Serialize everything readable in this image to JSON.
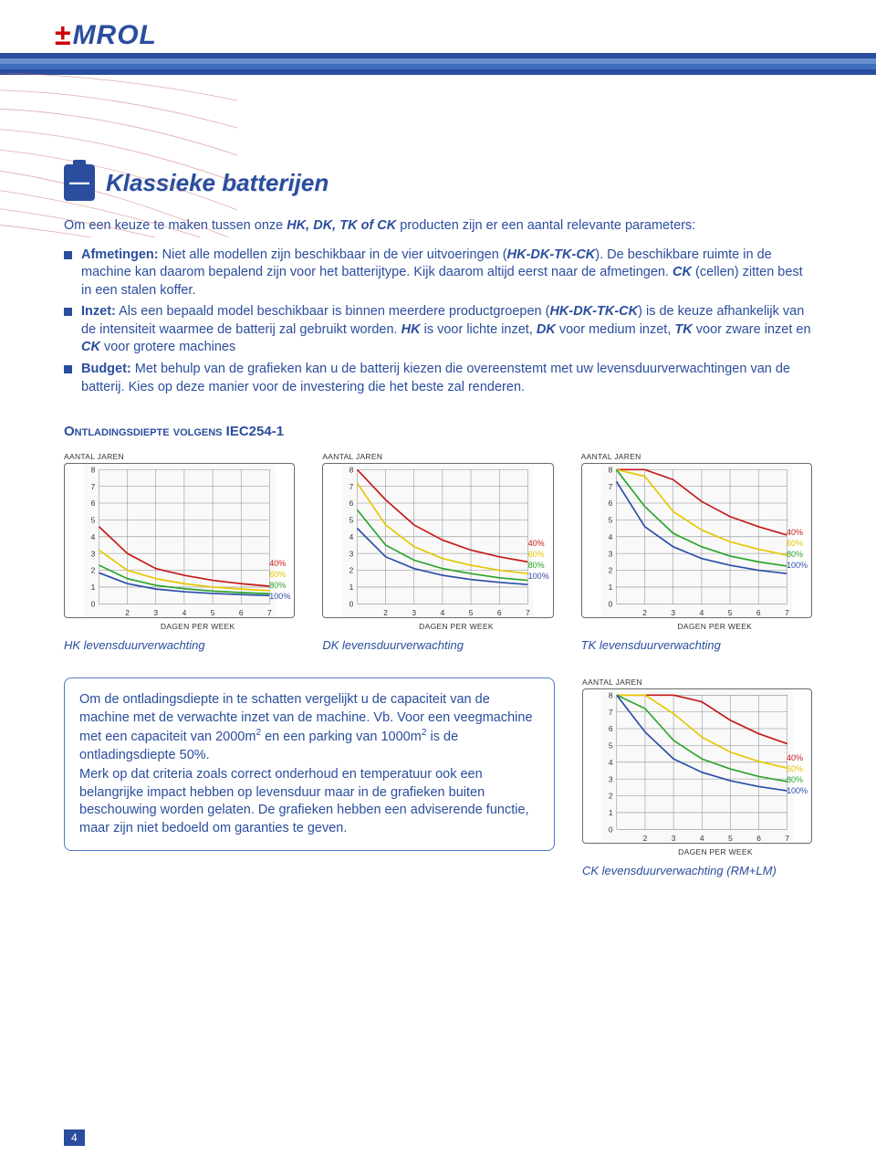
{
  "logo": {
    "mark": "±",
    "text": "MROL"
  },
  "title": "Klassieke batterijen",
  "intro_prefix": "Om een keuze te maken tussen onze ",
  "intro_products": "HK, DK, TK of CK",
  "intro_suffix": " producten zijn er een aantal relevante parameters:",
  "bullets": [
    {
      "head": "Afmetingen:",
      "body": " Niet alle modellen zijn beschikbaar in de vier uitvoeringen (",
      "em": "HK-DK-TK-CK",
      "body2": "). De beschikbare ruimte in de machine kan daarom bepalend zijn voor het  batterijtype. Kijk daarom altijd eerst naar de afmetingen. ",
      "em2": "CK",
      "body3": " (cellen) zitten best in een stalen koffer."
    },
    {
      "head": "Inzet:",
      "body": " Als een bepaald model beschikbaar is binnen meerdere productgroepen (",
      "em": "HK-DK-TK-CK",
      "body2": ") is de keuze afhankelijk van de intensiteit waarmee de batterij zal gebruikt worden. ",
      "em2": "HK",
      "body3": " is voor lichte inzet, ",
      "em3": "DK",
      "body4": " voor medium inzet, ",
      "em4": "TK",
      "body5": " voor zware inzet en ",
      "em5": "CK",
      "body6": " voor grotere machines"
    },
    {
      "head": "Budget:",
      "body": " Met behulp van de grafieken kan u de batterij kiezen die overeenstemt met uw levensduurverwachtingen van de batterij. Kies op deze manier voor de investering die het beste zal renderen."
    }
  ],
  "section_title": "Ontladingsdiepte volgens IEC254-1",
  "axis": {
    "y": "AANTAL JAREN",
    "x": "DAGEN PER WEEK"
  },
  "series_labels": [
    "40%",
    "60%",
    "80%",
    "100%"
  ],
  "series_colors": {
    "40": "#c61a1a",
    "60": "#e6c800",
    "80": "#2aa52a",
    "100": "#2a4da8"
  },
  "grid_color": "#8a8a8a",
  "chart_bg": "#f9f9f9",
  "xlim": [
    1,
    7
  ],
  "ylim": [
    0,
    8
  ],
  "charts": [
    {
      "caption": "HK levensduurverwachting",
      "legend_pos": "right-bottom",
      "curves": {
        "40": [
          [
            1,
            4.6
          ],
          [
            2,
            3.0
          ],
          [
            3,
            2.1
          ],
          [
            4,
            1.7
          ],
          [
            5,
            1.4
          ],
          [
            6,
            1.2
          ],
          [
            7,
            1.05
          ]
        ],
        "60": [
          [
            1,
            3.2
          ],
          [
            2,
            2.0
          ],
          [
            3,
            1.5
          ],
          [
            4,
            1.2
          ],
          [
            5,
            1.0
          ],
          [
            6,
            0.88
          ],
          [
            7,
            0.78
          ]
        ],
        "80": [
          [
            1,
            2.3
          ],
          [
            2,
            1.5
          ],
          [
            3,
            1.1
          ],
          [
            4,
            0.9
          ],
          [
            5,
            0.76
          ],
          [
            6,
            0.67
          ],
          [
            7,
            0.6
          ]
        ],
        "100": [
          [
            1,
            1.85
          ],
          [
            2,
            1.2
          ],
          [
            3,
            0.88
          ],
          [
            4,
            0.72
          ],
          [
            5,
            0.62
          ],
          [
            6,
            0.55
          ],
          [
            7,
            0.49
          ]
        ]
      }
    },
    {
      "caption": "DK levensduurverwachting",
      "legend_pos": "right-mid",
      "curves": {
        "40": [
          [
            1,
            8.0
          ],
          [
            2,
            6.2
          ],
          [
            3,
            4.7
          ],
          [
            4,
            3.8
          ],
          [
            5,
            3.2
          ],
          [
            6,
            2.8
          ],
          [
            7,
            2.5
          ]
        ],
        "60": [
          [
            1,
            7.2
          ],
          [
            2,
            4.7
          ],
          [
            3,
            3.4
          ],
          [
            4,
            2.7
          ],
          [
            5,
            2.3
          ],
          [
            6,
            2.0
          ],
          [
            7,
            1.8
          ]
        ],
        "80": [
          [
            1,
            5.6
          ],
          [
            2,
            3.5
          ],
          [
            3,
            2.6
          ],
          [
            4,
            2.1
          ],
          [
            5,
            1.8
          ],
          [
            6,
            1.55
          ],
          [
            7,
            1.4
          ]
        ],
        "100": [
          [
            1,
            4.5
          ],
          [
            2,
            2.8
          ],
          [
            3,
            2.1
          ],
          [
            4,
            1.7
          ],
          [
            5,
            1.45
          ],
          [
            6,
            1.28
          ],
          [
            7,
            1.15
          ]
        ]
      }
    },
    {
      "caption": "TK levensduurverwachting",
      "legend_pos": "right-high",
      "curves": {
        "40": [
          [
            1,
            8.0
          ],
          [
            2,
            8.0
          ],
          [
            3,
            7.4
          ],
          [
            4,
            6.1
          ],
          [
            5,
            5.2
          ],
          [
            6,
            4.6
          ],
          [
            7,
            4.1
          ]
        ],
        "60": [
          [
            1,
            8.0
          ],
          [
            2,
            7.6
          ],
          [
            3,
            5.5
          ],
          [
            4,
            4.4
          ],
          [
            5,
            3.7
          ],
          [
            6,
            3.25
          ],
          [
            7,
            2.9
          ]
        ],
        "80": [
          [
            1,
            8.0
          ],
          [
            2,
            5.8
          ],
          [
            3,
            4.2
          ],
          [
            4,
            3.4
          ],
          [
            5,
            2.85
          ],
          [
            6,
            2.5
          ],
          [
            7,
            2.25
          ]
        ],
        "100": [
          [
            1,
            7.3
          ],
          [
            2,
            4.6
          ],
          [
            3,
            3.4
          ],
          [
            4,
            2.7
          ],
          [
            5,
            2.3
          ],
          [
            6,
            2.0
          ],
          [
            7,
            1.8
          ]
        ]
      }
    }
  ],
  "ck_chart": {
    "caption": "CK levensduurverwachting (RM+LM)",
    "legend_pos": "right-high",
    "curves": {
      "40": [
        [
          1,
          8.0
        ],
        [
          2,
          8.0
        ],
        [
          3,
          8.0
        ],
        [
          4,
          7.6
        ],
        [
          5,
          6.5
        ],
        [
          6,
          5.7
        ],
        [
          7,
          5.1
        ]
      ],
      "60": [
        [
          1,
          8.0
        ],
        [
          2,
          8.0
        ],
        [
          3,
          6.9
        ],
        [
          4,
          5.5
        ],
        [
          5,
          4.6
        ],
        [
          6,
          4.05
        ],
        [
          7,
          3.65
        ]
      ],
      "80": [
        [
          1,
          8.0
        ],
        [
          2,
          7.2
        ],
        [
          3,
          5.3
        ],
        [
          4,
          4.2
        ],
        [
          5,
          3.6
        ],
        [
          6,
          3.15
        ],
        [
          7,
          2.85
        ]
      ],
      "100": [
        [
          1,
          8.0
        ],
        [
          2,
          5.8
        ],
        [
          3,
          4.2
        ],
        [
          4,
          3.4
        ],
        [
          5,
          2.9
        ],
        [
          6,
          2.55
        ],
        [
          7,
          2.3
        ]
      ]
    }
  },
  "note": {
    "p1_a": "Om de ontladingsdiepte in te schatten vergelijkt u de capaciteit van de machine met de verwachte inzet van de machine. Vb. Voor een veegmachine met een capaciteit van 2000m",
    "p1_b": " en een parking van 1000m",
    "p1_c": " is de ontladingsdiepte 50%.",
    "p2": "Merk op dat criteria zoals correct onderhoud en temperatuur ook een belangrijke impact hebben op levensduur maar in de grafieken buiten beschouwing worden gelaten. De grafieken hebben een adviserende functie, maar zijn niet bedoeld om garanties te geven."
  },
  "page_number": "4"
}
